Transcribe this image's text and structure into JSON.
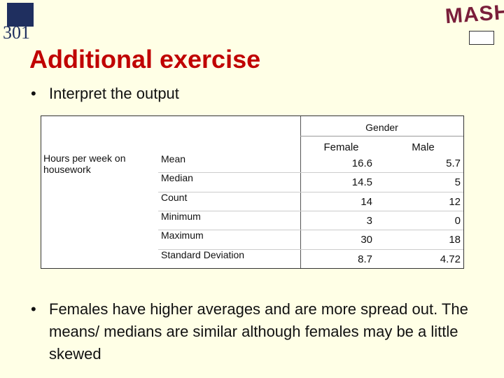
{
  "logos": {
    "left": "301",
    "right": "MASH"
  },
  "title": "Additional exercise",
  "bullets": [
    "Interpret the output",
    "Females have higher averages and are more spread out. The means/ medians are similar although females may be a little skewed"
  ],
  "table": {
    "group_header": "Gender",
    "columns": [
      "Female",
      "Male"
    ],
    "row_label": "Hours per week on housework",
    "rows": [
      {
        "stat": "Mean",
        "values": [
          16.6,
          5.7
        ]
      },
      {
        "stat": "Median",
        "values": [
          14.5,
          5
        ]
      },
      {
        "stat": "Count",
        "values": [
          14,
          12
        ]
      },
      {
        "stat": "Minimum",
        "values": [
          3,
          0
        ]
      },
      {
        "stat": "Maximum",
        "values": [
          30,
          18
        ]
      },
      {
        "stat": "Standard Deviation",
        "values": [
          8.7,
          4.72
        ]
      }
    ]
  }
}
